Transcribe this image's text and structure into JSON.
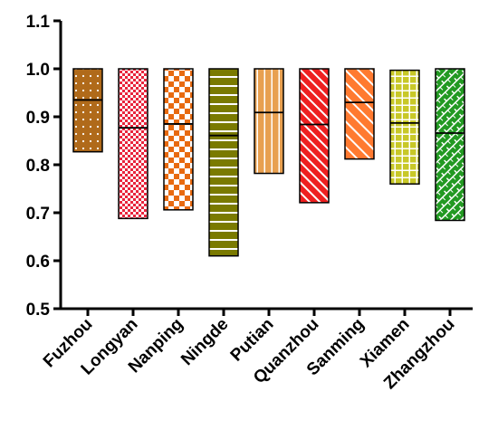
{
  "chart_data": {
    "type": "bar",
    "subtype": "floating-range-with-median",
    "title": "",
    "xlabel": "",
    "ylabel": "",
    "ylim": [
      0.5,
      1.1
    ],
    "yticks": [
      "0.5",
      "0.6",
      "0.7",
      "0.8",
      "0.9",
      "1.0",
      "1.1"
    ],
    "grid": false,
    "legend": "none",
    "categories": [
      "Fuzhou",
      "Longyan",
      "Nanping",
      "Ningde",
      "Putian",
      "Quanzhou",
      "Sanming",
      "Xiamen",
      "Zhangzhou"
    ],
    "series": [
      {
        "min": [
          0.827,
          0.688,
          0.706,
          0.61,
          0.782,
          0.721,
          0.812,
          0.76,
          0.684
        ],
        "median": [
          0.935,
          0.877,
          0.885,
          0.861,
          0.909,
          0.884,
          0.93,
          0.887,
          0.866
        ],
        "max": [
          1.0,
          1.0,
          1.0,
          1.0,
          1.0,
          1.0,
          1.0,
          0.997,
          1.0
        ]
      }
    ],
    "colors": [
      "#b06a1a",
      "#e8243c",
      "#e86a10",
      "#7a7a00",
      "#e8a050",
      "#ee2020",
      "#ff7a30",
      "#c8c828",
      "#229922"
    ],
    "patterns": [
      "dots",
      "checker-small",
      "checker-large",
      "horizontal-lines",
      "vertical-lines",
      "diagonal",
      "diagonal-wide",
      "grid",
      "brick"
    ]
  }
}
